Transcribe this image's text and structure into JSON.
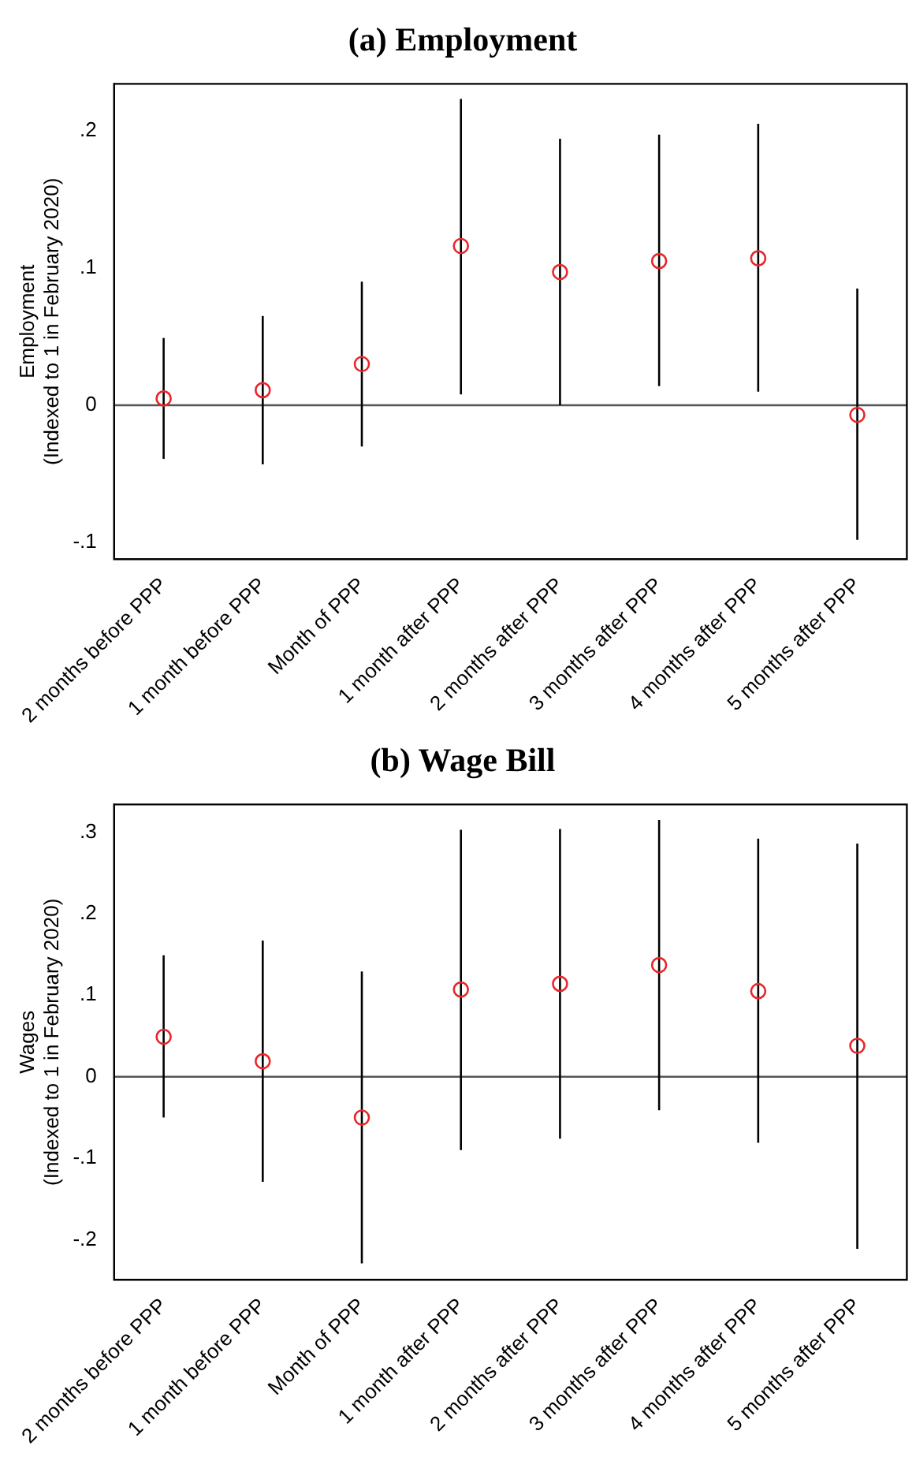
{
  "chart_data": [
    {
      "type": "scatter",
      "title": "(a) Employment",
      "ylabel": "Employment\n(Indexed to 1 in February 2020)",
      "categories": [
        "2 months before PPP",
        "1 month before PPP",
        "Month of PPP",
        "1 month after PPP",
        "2 months after PPP",
        "3 months after PPP",
        "4 months after PPP",
        "5 months after PPP"
      ],
      "series": [
        {
          "color": "#e8262b",
          "values": [
            0.005,
            0.011,
            0.03,
            0.116,
            0.097,
            0.105,
            0.107,
            -0.007
          ],
          "errors": [
            [
              -0.039,
              0.049
            ],
            [
              -0.043,
              0.065
            ],
            [
              -0.03,
              0.09
            ],
            [
              0.008,
              0.223
            ],
            [
              0.0,
              0.194
            ],
            [
              0.014,
              0.197
            ],
            [
              0.01,
              0.205
            ],
            [
              -0.098,
              0.085
            ]
          ]
        }
      ],
      "ylim": [
        -0.112,
        0.234
      ],
      "yticks": [
        {
          "value": -0.1,
          "label": "-.1"
        },
        {
          "value": 0,
          "label": "0"
        },
        {
          "value": 0.1,
          "label": ".1"
        },
        {
          "value": 0.2,
          "label": ".2"
        }
      ],
      "ref_lines": [
        {
          "axis": "y",
          "value": 0,
          "color": "#555555"
        }
      ],
      "grid": false,
      "legend": false,
      "marker": "circle"
    },
    {
      "type": "scatter",
      "title": "(b) Wage Bill",
      "ylabel": "Wages\n(Indexed to 1 in February 2020)",
      "categories": [
        "2 months before PPP",
        "1 month before PPP",
        "Month of PPP",
        "1 month after PPP",
        "2 months after PPP",
        "3 months after PPP",
        "4 months after PPP",
        "5 months after PPP"
      ],
      "series": [
        {
          "color": "#e8262b",
          "values": [
            0.049,
            0.019,
            -0.05,
            0.107,
            0.114,
            0.137,
            0.105,
            0.038
          ],
          "errors": [
            [
              -0.05,
              0.149
            ],
            [
              -0.129,
              0.167
            ],
            [
              -0.229,
              0.129
            ],
            [
              -0.09,
              0.303
            ],
            [
              -0.076,
              0.304
            ],
            [
              -0.041,
              0.315
            ],
            [
              -0.081,
              0.292
            ],
            [
              -0.211,
              0.286
            ]
          ]
        }
      ],
      "ylim": [
        -0.249,
        0.334
      ],
      "yticks": [
        {
          "value": -0.2,
          "label": "-.2"
        },
        {
          "value": -0.1,
          "label": "-.1"
        },
        {
          "value": 0,
          "label": "0"
        },
        {
          "value": 0.1,
          "label": ".1"
        },
        {
          "value": 0.2,
          "label": ".2"
        },
        {
          "value": 0.3,
          "label": ".3"
        }
      ],
      "ref_lines": [
        {
          "axis": "y",
          "value": 0,
          "color": "#555555"
        }
      ],
      "grid": false,
      "legend": false,
      "marker": "circle"
    }
  ]
}
